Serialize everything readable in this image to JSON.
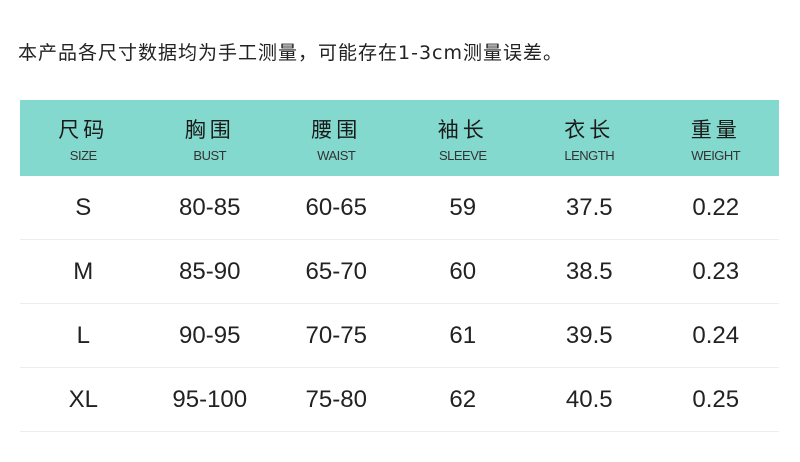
{
  "note": "本产品各尺寸数据均为手工测量，可能存在1-3cm测量误差。",
  "header_color": "#84d9cf",
  "columns": [
    {
      "zh": "尺码",
      "en": "SIZE"
    },
    {
      "zh": "胸围",
      "en": "BUST"
    },
    {
      "zh": "腰围",
      "en": "WAIST"
    },
    {
      "zh": "袖长",
      "en": "SLEEVE"
    },
    {
      "zh": "衣长",
      "en": "LENGTH"
    },
    {
      "zh": "重量",
      "en": "WEIGHT"
    }
  ],
  "rows": [
    [
      "S",
      "80-85",
      "60-65",
      "59",
      "37.5",
      "0.22"
    ],
    [
      "M",
      "85-90",
      "65-70",
      "60",
      "38.5",
      "0.23"
    ],
    [
      "L",
      "90-95",
      "70-75",
      "61",
      "39.5",
      "0.24"
    ],
    [
      "XL",
      "95-100",
      "75-80",
      "62",
      "40.5",
      "0.25"
    ]
  ]
}
